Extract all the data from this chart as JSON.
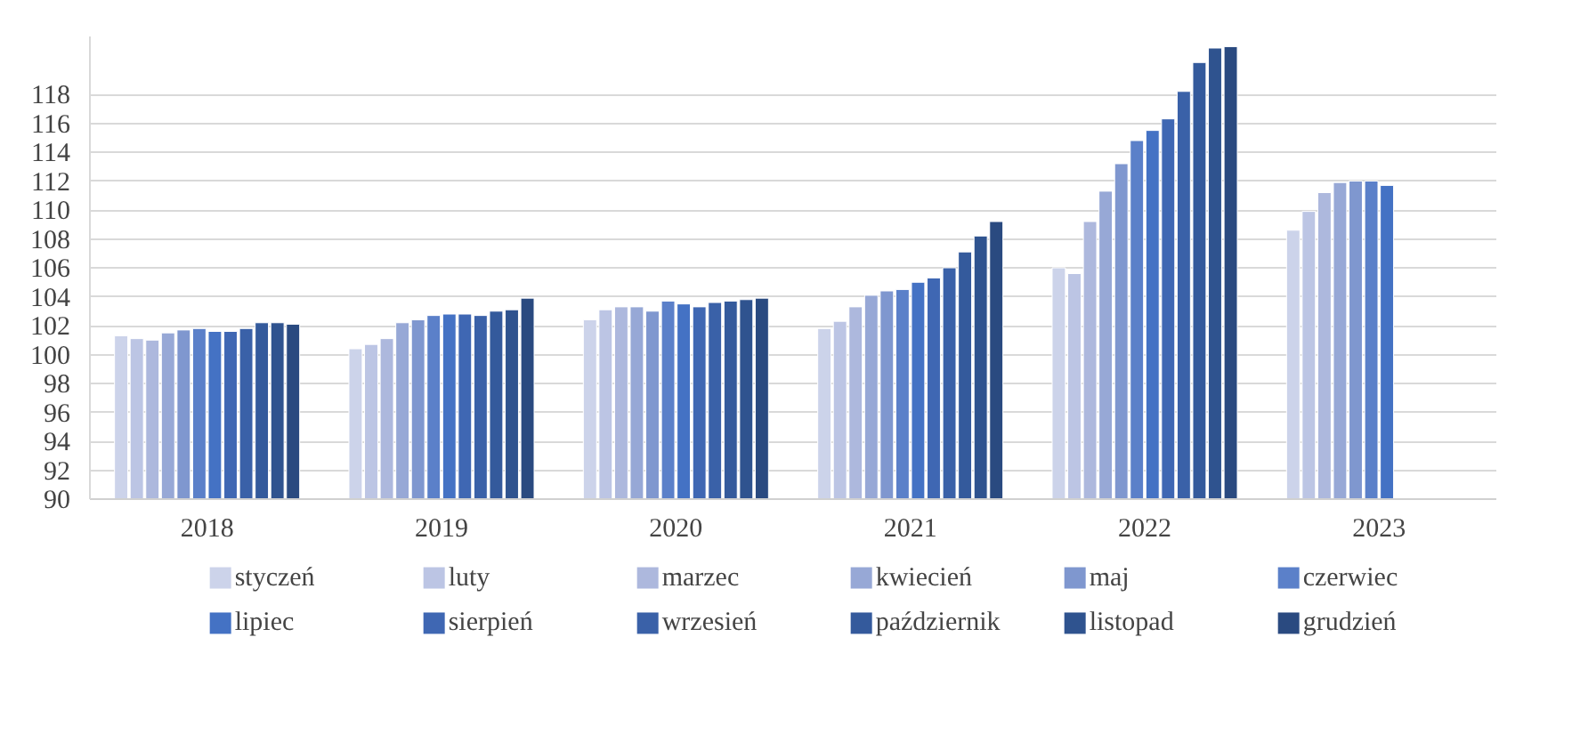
{
  "chart_data": {
    "type": "bar",
    "categories": [
      "2018",
      "2019",
      "2020",
      "2021",
      "2022",
      "2023"
    ],
    "ylim": [
      90,
      122
    ],
    "yticks": [
      90,
      92,
      94,
      96,
      98,
      100,
      102,
      104,
      106,
      108,
      110,
      112,
      114,
      116,
      118
    ],
    "grid": "y",
    "legend": "bottom",
    "series": [
      {
        "name": "styczeń",
        "color": "#ccd3ea",
        "values": [
          101.3,
          100.4,
          102.4,
          101.8,
          106.0,
          108.6
        ]
      },
      {
        "name": "luty",
        "color": "#bcc5e4",
        "values": [
          101.1,
          100.7,
          103.1,
          102.3,
          105.6,
          109.9
        ]
      },
      {
        "name": "marzec",
        "color": "#adb8dd",
        "values": [
          101.0,
          101.1,
          103.3,
          103.3,
          109.2,
          111.2
        ]
      },
      {
        "name": "kwiecień",
        "color": "#97a8d6",
        "values": [
          101.5,
          102.2,
          103.3,
          104.1,
          111.3,
          111.9
        ]
      },
      {
        "name": "maj",
        "color": "#7f97cf",
        "values": [
          101.7,
          102.4,
          103.0,
          104.4,
          113.2,
          112.0
        ]
      },
      {
        "name": "czerwiec",
        "color": "#5b80c9",
        "values": [
          101.8,
          102.7,
          103.7,
          104.5,
          114.8,
          112.0
        ]
      },
      {
        "name": "lipiec",
        "color": "#4472c4",
        "values": [
          101.6,
          102.8,
          103.5,
          105.0,
          115.5,
          111.7
        ]
      },
      {
        "name": "sierpień",
        "color": "#3f67b3",
        "values": [
          101.6,
          102.8,
          103.3,
          105.3,
          116.3,
          null
        ]
      },
      {
        "name": "wrzesień",
        "color": "#3a61a8",
        "values": [
          101.8,
          102.7,
          103.6,
          106.0,
          118.2,
          null
        ]
      },
      {
        "name": "październik",
        "color": "#345a9c",
        "values": [
          102.2,
          103.0,
          103.7,
          107.1,
          120.2,
          null
        ]
      },
      {
        "name": "listopad",
        "color": "#2f538f",
        "values": [
          102.2,
          103.1,
          103.8,
          108.2,
          121.2,
          null
        ]
      },
      {
        "name": "grudzień",
        "color": "#2a4a80",
        "values": [
          102.1,
          103.9,
          103.9,
          109.2,
          121.3,
          null
        ]
      }
    ]
  }
}
